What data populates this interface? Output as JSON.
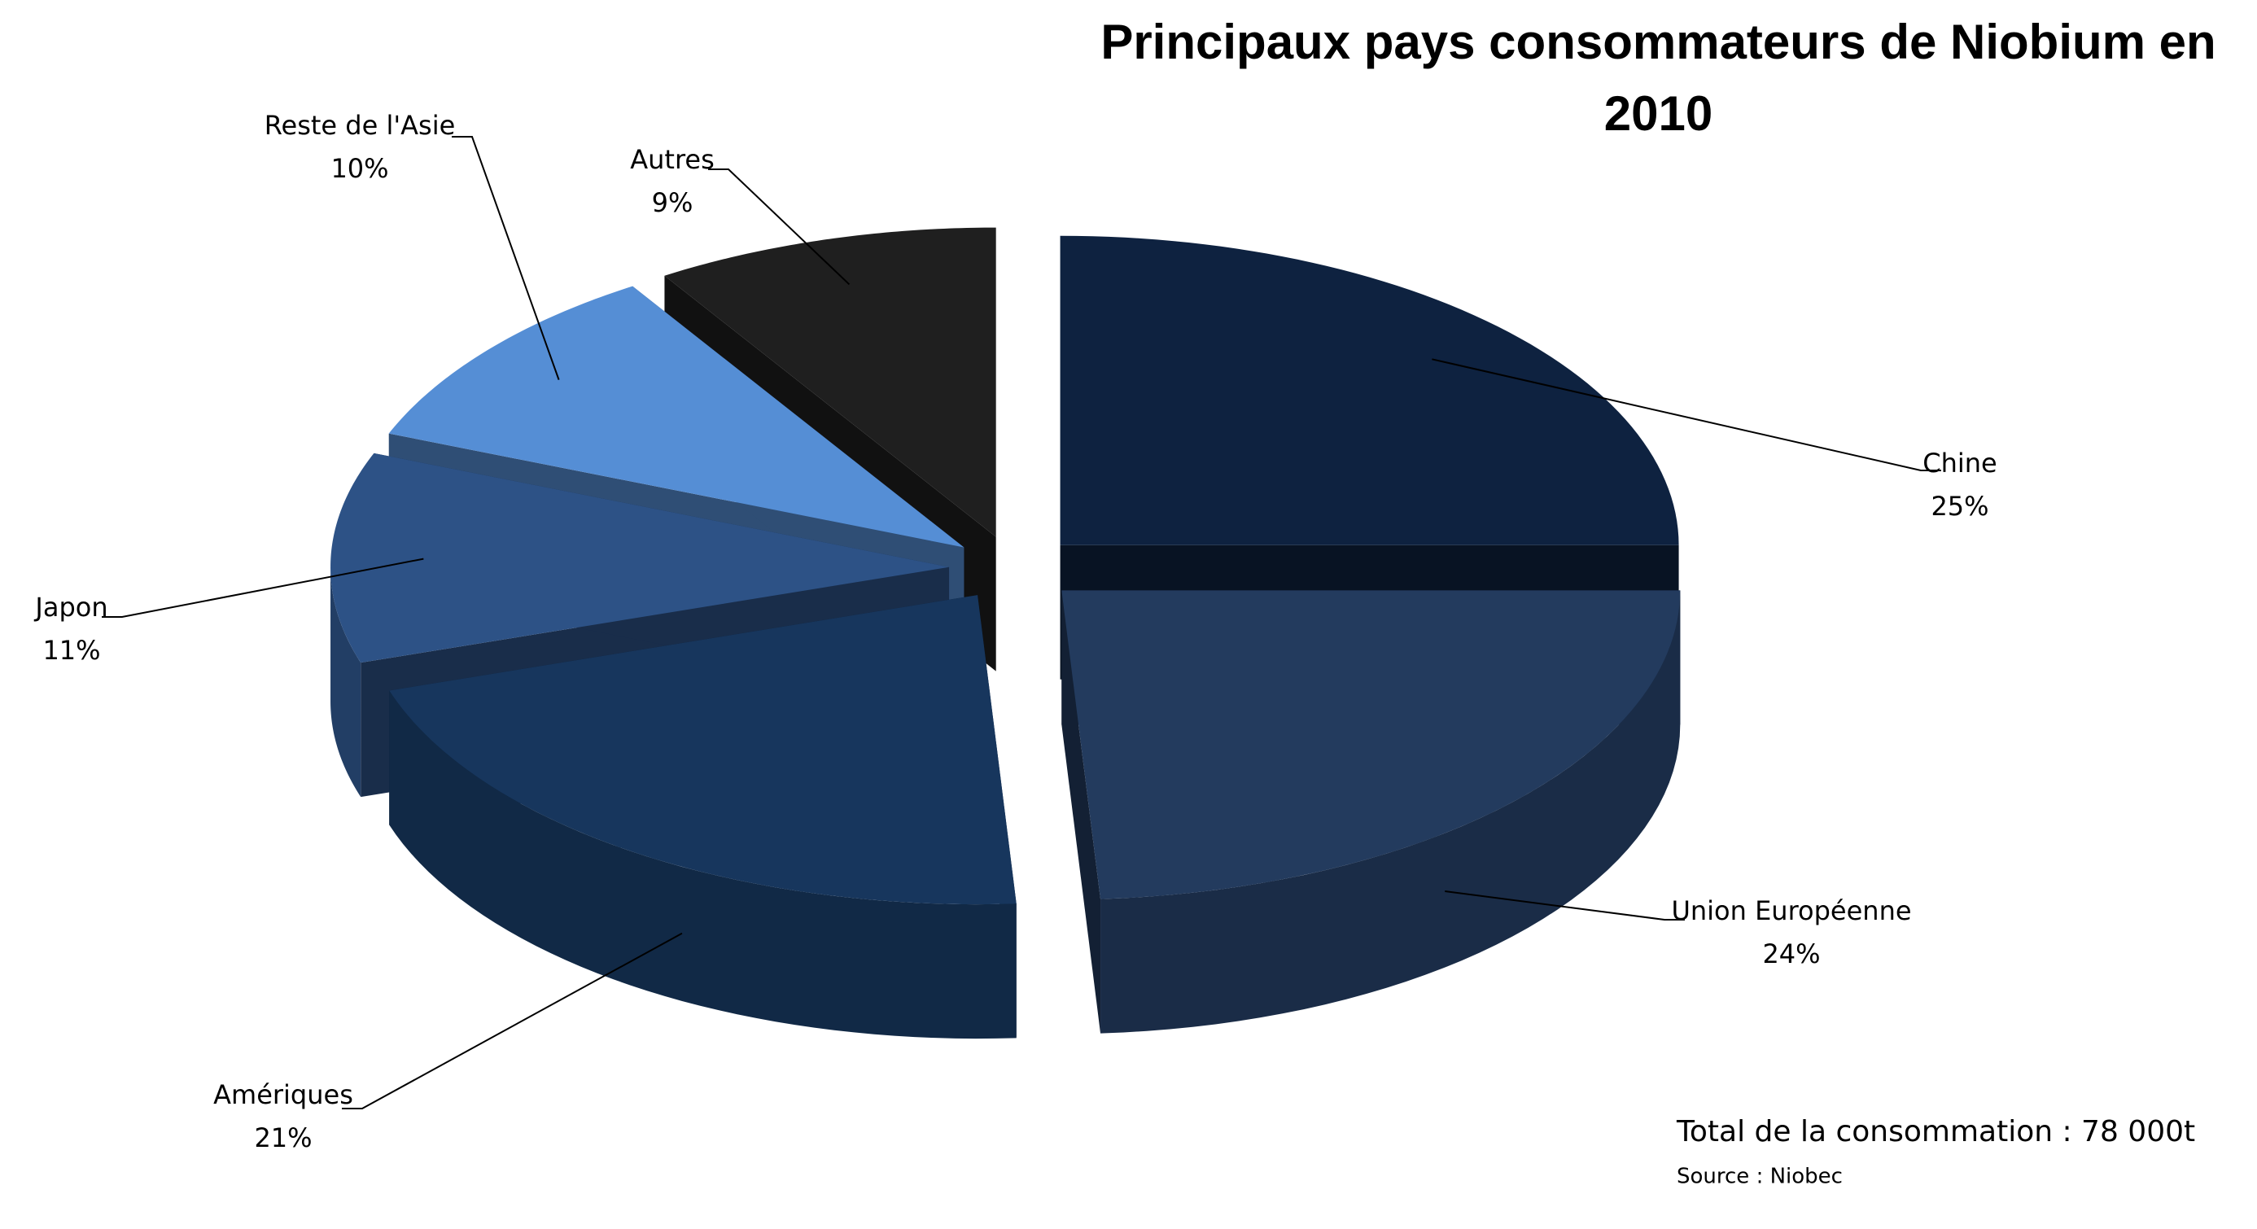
{
  "chart_data": {
    "type": "pie3d",
    "title": "Principaux pays consommateurs de Niobium en 2010",
    "categories": [
      "Chine",
      "Union Européenne",
      "Amériques",
      "Japon",
      "Reste de l'Asie",
      "Autres"
    ],
    "values": [
      25,
      24,
      21,
      11,
      10,
      9
    ],
    "value_labels": [
      "25%",
      "24%",
      "21%",
      "11%",
      "10%",
      "9%"
    ],
    "colors": [
      "#0e2240",
      "#233b5e",
      "#17365d",
      "#2d5286",
      "#558ed5",
      "#1f1f1f"
    ],
    "annotations": [
      "Total de la consommation : 78 000t",
      "Source : Niobec"
    ]
  }
}
